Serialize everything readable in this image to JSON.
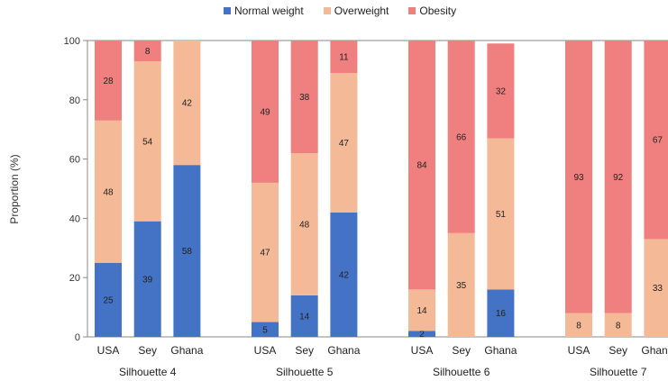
{
  "chart_data": {
    "type": "bar",
    "stacked": true,
    "ylabel": "Proportion (%)",
    "ylim": [
      0,
      100
    ],
    "yticks": [
      0,
      20,
      40,
      60,
      80,
      100
    ],
    "legend_position": "top",
    "series": [
      {
        "name": "Normal weight",
        "color": "#4472c4"
      },
      {
        "name": "Overweight",
        "color": "#f4b996"
      },
      {
        "name": "Obesity",
        "color": "#f08080"
      }
    ],
    "groups": [
      {
        "label": "Silhouette 4",
        "bars": [
          {
            "category": "USA",
            "values": [
              25,
              48,
              28
            ],
            "labels": [
              "25",
              "48",
              "28"
            ]
          },
          {
            "category": "Sey",
            "values": [
              39,
              54,
              8
            ],
            "labels": [
              "39",
              "54",
              "8"
            ]
          },
          {
            "category": "Ghana",
            "values": [
              58,
              42,
              0
            ],
            "labels": [
              "58",
              "42",
              ""
            ]
          }
        ]
      },
      {
        "label": "Silhouette 5",
        "bars": [
          {
            "category": "USA",
            "values": [
              5,
              47,
              49
            ],
            "labels": [
              "5",
              "47",
              "49"
            ]
          },
          {
            "category": "Sey",
            "values": [
              14,
              48,
              38
            ],
            "labels": [
              "14",
              "48",
              "38"
            ]
          },
          {
            "category": "Ghana",
            "values": [
              42,
              47,
              11
            ],
            "labels": [
              "42",
              "47",
              "11"
            ]
          }
        ]
      },
      {
        "label": "Silhouette 6",
        "bars": [
          {
            "category": "USA",
            "values": [
              2,
              14,
              84
            ],
            "labels": [
              "2",
              "14",
              "84"
            ]
          },
          {
            "category": "Sey",
            "values": [
              0,
              35,
              66
            ],
            "labels": [
              "",
              "35",
              "66"
            ]
          },
          {
            "category": "Ghana",
            "values": [
              16,
              51,
              32
            ],
            "labels": [
              "16",
              "51",
              "32"
            ]
          }
        ]
      },
      {
        "label": "Silhouette 7",
        "bars": [
          {
            "category": "USA",
            "values": [
              0,
              8,
              93
            ],
            "labels": [
              "",
              "8",
              "93"
            ]
          },
          {
            "category": "Sey",
            "values": [
              0,
              8,
              92
            ],
            "labels": [
              "",
              "8",
              "92"
            ]
          },
          {
            "category": "Ghana",
            "values": [
              0,
              33,
              67
            ],
            "labels": [
              "",
              "33",
              "67"
            ]
          }
        ]
      }
    ]
  }
}
